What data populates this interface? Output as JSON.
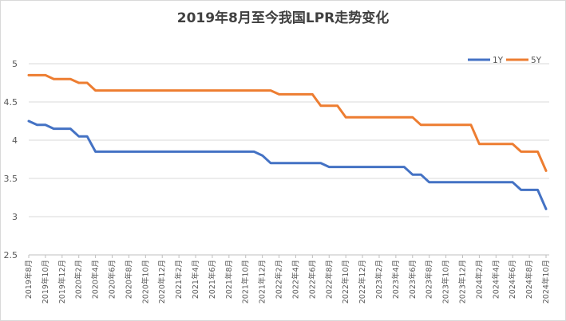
{
  "chart_data": {
    "type": "line",
    "title": "2019年8月至今我国LPR走势变化",
    "xlabel": "",
    "ylabel": "",
    "ylim": [
      2.5,
      5
    ],
    "yticks": [
      "2.5",
      "3",
      "3.5",
      "4",
      "4.5",
      "5"
    ],
    "grid": true,
    "legend_position": "top-right",
    "x": [
      "2019年8月",
      "2019年9月",
      "2019年10月",
      "2019年11月",
      "2019年12月",
      "2020年1月",
      "2020年2月",
      "2020年3月",
      "2020年4月",
      "2020年5月",
      "2020年6月",
      "2020年7月",
      "2020年8月",
      "2020年9月",
      "2020年10月",
      "2020年11月",
      "2020年12月",
      "2021年1月",
      "2021年2月",
      "2021年3月",
      "2021年4月",
      "2021年5月",
      "2021年6月",
      "2021年7月",
      "2021年8月",
      "2021年9月",
      "2021年10月",
      "2021年11月",
      "2021年12月",
      "2022年1月",
      "2022年2月",
      "2022年3月",
      "2022年4月",
      "2022年5月",
      "2022年6月",
      "2022年7月",
      "2022年8月",
      "2022年9月",
      "2022年10月",
      "2022年11月",
      "2022年12月",
      "2023年1月",
      "2023年2月",
      "2023年3月",
      "2023年4月",
      "2023年5月",
      "2023年6月",
      "2023年7月",
      "2023年8月",
      "2023年9月",
      "2023年10月",
      "2023年11月",
      "2023年12月",
      "2024年1月",
      "2024年2月",
      "2024年3月",
      "2024年4月",
      "2024年5月",
      "2024年6月",
      "2024年7月",
      "2024年8月",
      "2024年9月",
      "2024年10月"
    ],
    "xtick_labels": [
      "2019年8月",
      "2019年10月",
      "2019年12月",
      "2020年2月",
      "2020年4月",
      "2020年6月",
      "2020年8月",
      "2020年10月",
      "2020年12月",
      "2021年2月",
      "2021年4月",
      "2021年6月",
      "2021年8月",
      "2021年10月",
      "2021年12月",
      "2022年2月",
      "2022年4月",
      "2022年6月",
      "2022年8月",
      "2022年10月",
      "2022年12月",
      "2023年2月",
      "2023年4月",
      "2023年6月",
      "2023年8月",
      "2023年10月",
      "2023年12月",
      "2024年2月",
      "2024年4月",
      "2024年6月",
      "2024年8月",
      "2024年10月"
    ],
    "series": [
      {
        "name": "1Y",
        "color": "#4472c4",
        "values": [
          4.25,
          4.2,
          4.2,
          4.15,
          4.15,
          4.15,
          4.05,
          4.05,
          3.85,
          3.85,
          3.85,
          3.85,
          3.85,
          3.85,
          3.85,
          3.85,
          3.85,
          3.85,
          3.85,
          3.85,
          3.85,
          3.85,
          3.85,
          3.85,
          3.85,
          3.85,
          3.85,
          3.85,
          3.8,
          3.7,
          3.7,
          3.7,
          3.7,
          3.7,
          3.7,
          3.7,
          3.65,
          3.65,
          3.65,
          3.65,
          3.65,
          3.65,
          3.65,
          3.65,
          3.65,
          3.65,
          3.55,
          3.55,
          3.45,
          3.45,
          3.45,
          3.45,
          3.45,
          3.45,
          3.45,
          3.45,
          3.45,
          3.45,
          3.45,
          3.35,
          3.35,
          3.35,
          3.1
        ]
      },
      {
        "name": "5Y",
        "color": "#ed7d31",
        "values": [
          4.85,
          4.85,
          4.85,
          4.8,
          4.8,
          4.8,
          4.75,
          4.75,
          4.65,
          4.65,
          4.65,
          4.65,
          4.65,
          4.65,
          4.65,
          4.65,
          4.65,
          4.65,
          4.65,
          4.65,
          4.65,
          4.65,
          4.65,
          4.65,
          4.65,
          4.65,
          4.65,
          4.65,
          4.65,
          4.65,
          4.6,
          4.6,
          4.6,
          4.6,
          4.6,
          4.45,
          4.45,
          4.45,
          4.3,
          4.3,
          4.3,
          4.3,
          4.3,
          4.3,
          4.3,
          4.3,
          4.3,
          4.2,
          4.2,
          4.2,
          4.2,
          4.2,
          4.2,
          4.2,
          3.95,
          3.95,
          3.95,
          3.95,
          3.95,
          3.85,
          3.85,
          3.85,
          3.6
        ]
      }
    ]
  }
}
